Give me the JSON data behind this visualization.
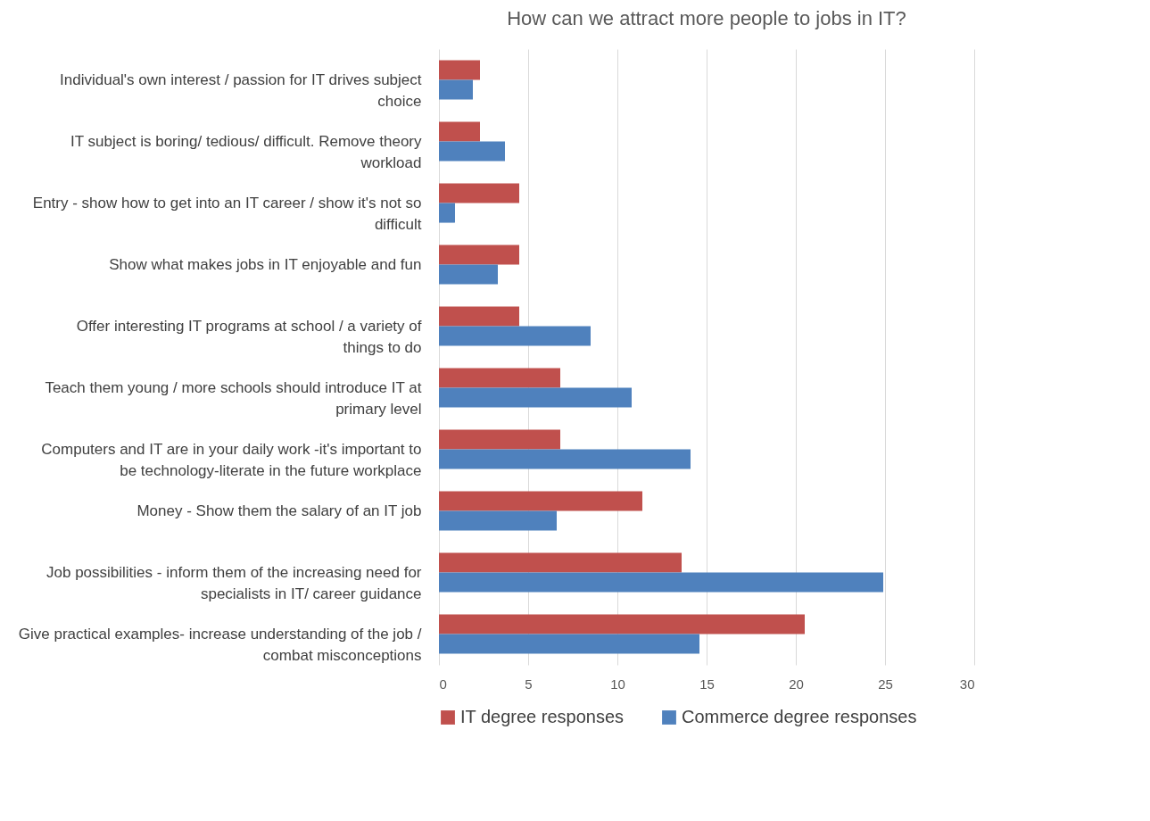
{
  "chart_data": {
    "type": "bar",
    "orientation": "horizontal",
    "title": "How can we attract more people to jobs in IT?",
    "categories": [
      "Individual's own interest / passion for IT drives subject choice",
      "IT subject is boring/ tedious/ difficult.  Remove theory workload",
      "Entry - show how to get into an IT career / show it's not so difficult",
      "Show what makes jobs in IT enjoyable and fun",
      "Offer interesting IT programs at school / a variety of things to do",
      "Teach them young / more schools should introduce IT at primary level",
      "Computers and IT are in your daily work -it's important to be technology-literate in the future workplace",
      "Money - Show them the salary of an IT job",
      "Job possibilities - inform them of the increasing need for specialists in IT/ career guidance",
      "Give practical examples- increase understanding of the job / combat misconceptions"
    ],
    "series": [
      {
        "name": "IT degree responses",
        "color": "#c0504d",
        "values": [
          2.3,
          2.3,
          4.5,
          4.5,
          4.5,
          6.8,
          6.8,
          11.4,
          13.6,
          20.5
        ]
      },
      {
        "name": "Commerce degree responses",
        "color": "#4f81bd",
        "values": [
          1.9,
          3.7,
          0.9,
          3.3,
          8.5,
          10.8,
          14.1,
          6.6,
          24.9,
          14.6
        ]
      }
    ],
    "xlim": [
      0,
      30
    ],
    "xticks": [
      0,
      5,
      10,
      15,
      20,
      25,
      30
    ],
    "grid": "x",
    "legend": "bottom"
  }
}
